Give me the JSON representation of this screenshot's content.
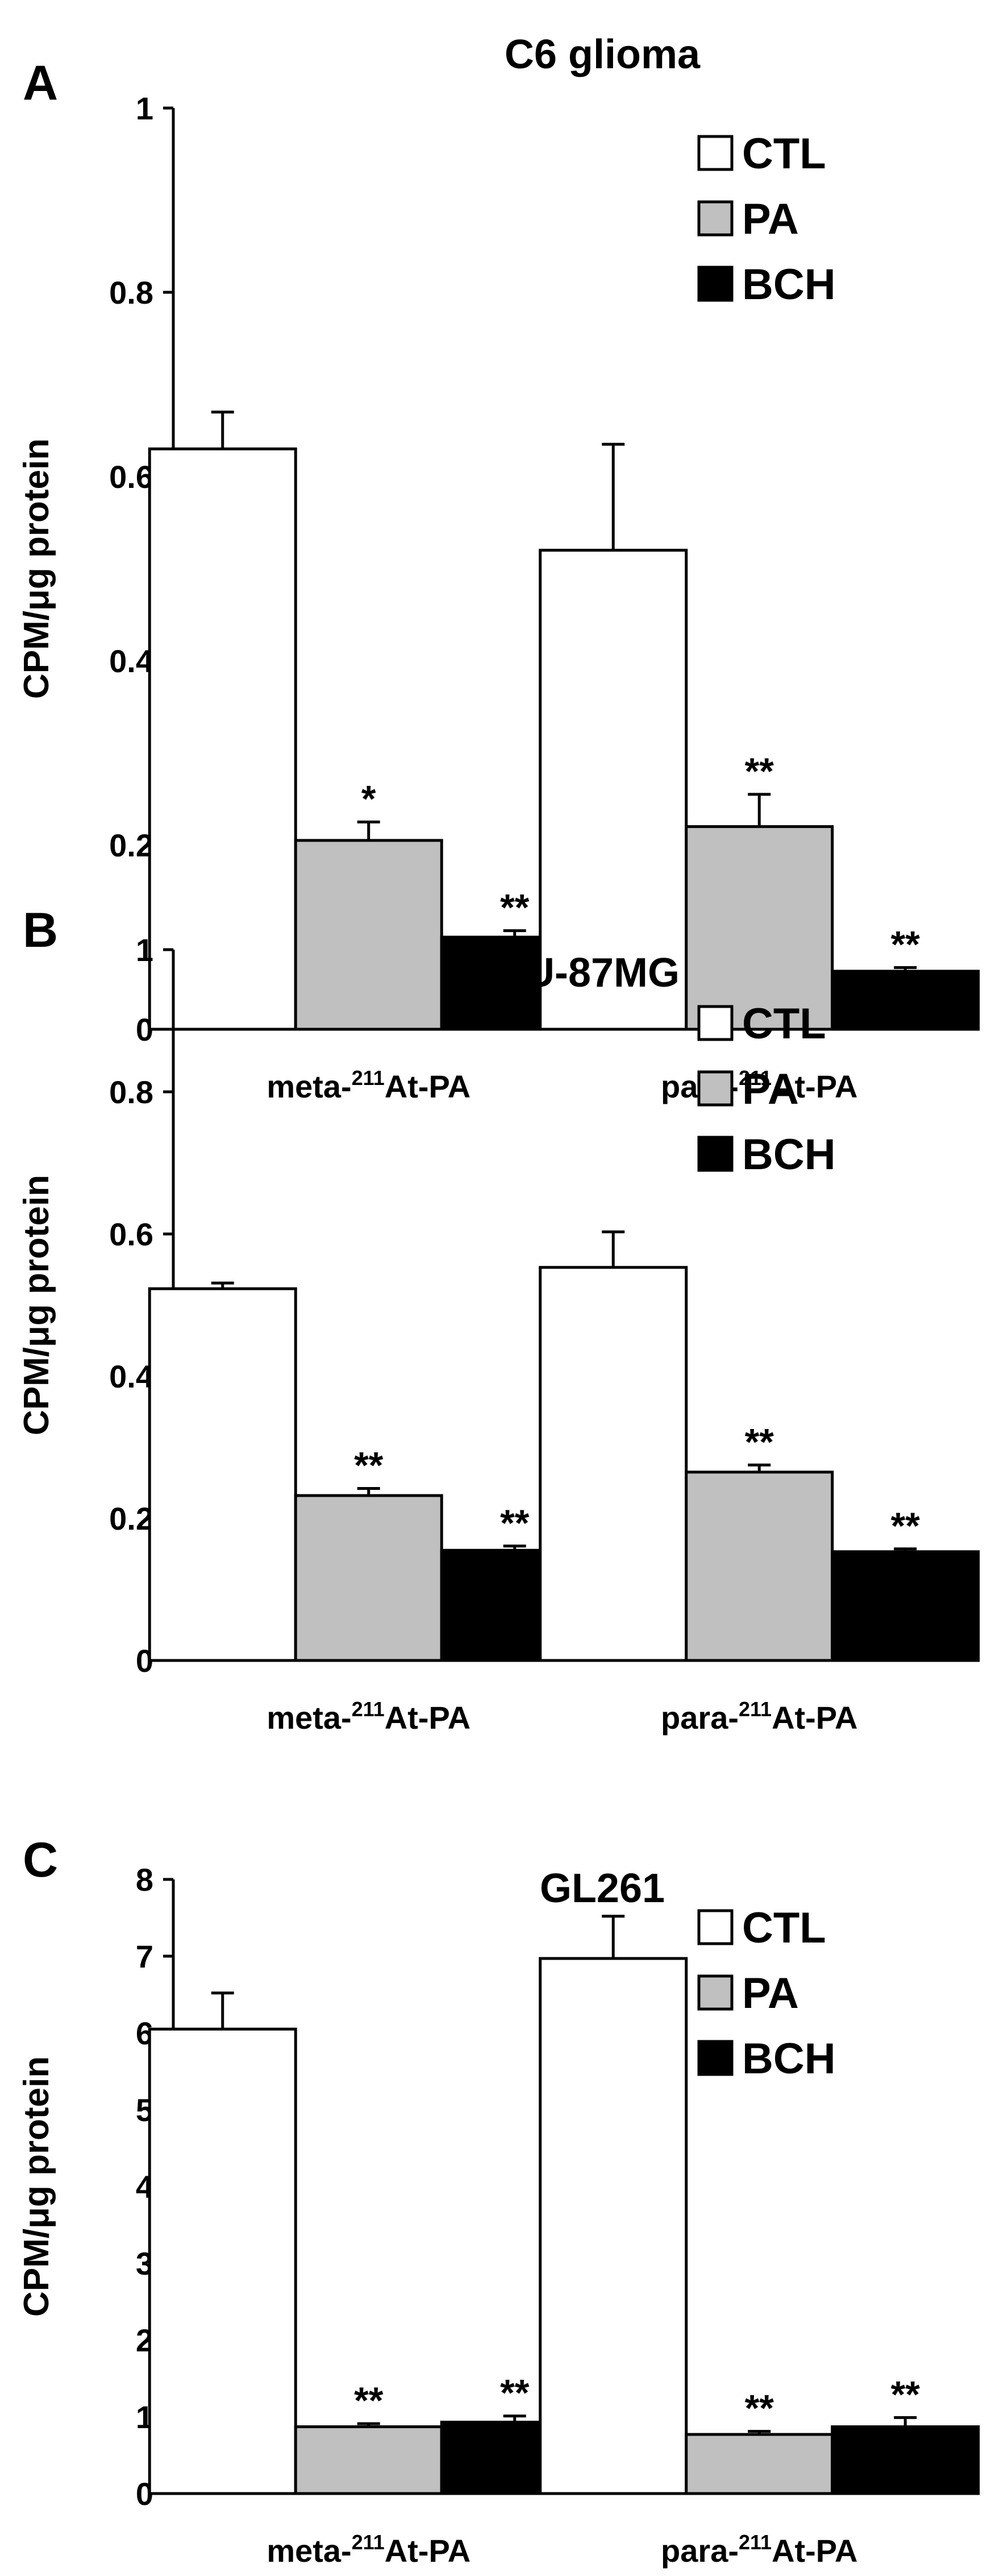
{
  "chart_data": [
    {
      "type": "bar",
      "panel_label": "A",
      "title": "C6 glioma",
      "ylabel": "CPM/μg protein",
      "ylim": [
        0,
        1
      ],
      "yticks": [
        0,
        0.2,
        0.4,
        0.6,
        0.8,
        1
      ],
      "ytick_labels": [
        "0",
        "0.2",
        "0.4",
        "0.6",
        "0.8",
        "1"
      ],
      "categories": [
        {
          "prefix": "meta-",
          "sup": "211",
          "suffix": "At-PA"
        },
        {
          "prefix": "para-",
          "sup": "211",
          "suffix": "At-PA"
        }
      ],
      "legend_position": "top-right",
      "series": [
        {
          "name": "CTL",
          "color": "#ffffff",
          "values": [
            0.63,
            0.52
          ],
          "errors": [
            0.04,
            0.115
          ],
          "marks": [
            "",
            ""
          ]
        },
        {
          "name": "PA",
          "color": "#c0c0c0",
          "values": [
            0.205,
            0.22
          ],
          "errors": [
            0.02,
            0.035
          ],
          "marks": [
            "*",
            "**"
          ]
        },
        {
          "name": "BCH",
          "color": "#000000",
          "values": [
            0.1,
            0.063
          ],
          "errors": [
            0.007,
            0.004
          ],
          "marks": [
            "**",
            "**"
          ]
        }
      ]
    },
    {
      "type": "bar",
      "panel_label": "B",
      "title": "U-87MG",
      "ylabel": "CPM/μg protein",
      "ylim": [
        0,
        1
      ],
      "yticks": [
        0,
        0.2,
        0.4,
        0.6,
        0.8,
        1
      ],
      "ytick_labels": [
        "0",
        "0.2",
        "0.4",
        "0.6",
        "0.8",
        "1"
      ],
      "categories": [
        {
          "prefix": "meta-",
          "sup": "211",
          "suffix": "At-PA"
        },
        {
          "prefix": "para-",
          "sup": "211",
          "suffix": "At-PA"
        }
      ],
      "legend_position": "top-right",
      "series": [
        {
          "name": "CTL",
          "color": "#ffffff",
          "values": [
            0.523,
            0.553
          ],
          "errors": [
            0.008,
            0.05
          ],
          "marks": [
            "",
            ""
          ]
        },
        {
          "name": "PA",
          "color": "#c0c0c0",
          "values": [
            0.232,
            0.265
          ],
          "errors": [
            0.01,
            0.01
          ],
          "marks": [
            "**",
            "**"
          ]
        },
        {
          "name": "BCH",
          "color": "#000000",
          "values": [
            0.155,
            0.153
          ],
          "errors": [
            0.006,
            0.004
          ],
          "marks": [
            "**",
            "**"
          ]
        }
      ]
    },
    {
      "type": "bar",
      "panel_label": "C",
      "title": "GL261",
      "ylabel": "CPM/μg protein",
      "ylim": [
        0,
        8
      ],
      "yticks": [
        0,
        1,
        2,
        3,
        4,
        5,
        6,
        7,
        8
      ],
      "ytick_labels": [
        "0",
        "1",
        "2",
        "3",
        "4",
        "5",
        "6",
        "7",
        "8"
      ],
      "categories": [
        {
          "prefix": "meta-",
          "sup": "211",
          "suffix": "At-PA"
        },
        {
          "prefix": "para-",
          "sup": "211",
          "suffix": "At-PA"
        }
      ],
      "legend_position": "top-right",
      "series": [
        {
          "name": "CTL",
          "color": "#ffffff",
          "values": [
            6.05,
            6.97
          ],
          "errors": [
            0.47,
            0.55
          ],
          "marks": [
            "",
            ""
          ]
        },
        {
          "name": "PA",
          "color": "#c0c0c0",
          "values": [
            0.87,
            0.77
          ],
          "errors": [
            0.04,
            0.04
          ],
          "marks": [
            "**",
            "**"
          ]
        },
        {
          "name": "BCH",
          "color": "#000000",
          "values": [
            0.93,
            0.87
          ],
          "errors": [
            0.08,
            0.12
          ],
          "marks": [
            "**",
            "**"
          ]
        }
      ]
    }
  ]
}
